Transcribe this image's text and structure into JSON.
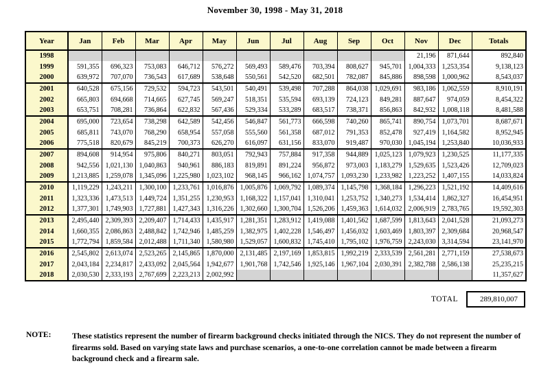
{
  "title": "November 30, 1998 - May 31, 2018",
  "table": {
    "headers": [
      "Year",
      "Jan",
      "Feb",
      "Mar",
      "Apr",
      "May",
      "Jun",
      "Jul",
      "Aug",
      "Sep",
      "Oct",
      "Nov",
      "Dec",
      "Totals"
    ],
    "rows": [
      {
        "year": "1998",
        "values": [
          "",
          "",
          "",
          "",
          "",
          "",
          "",
          "",
          "",
          "",
          "21,196",
          "871,644"
        ],
        "total": "892,840"
      },
      {
        "year": "1999",
        "values": [
          "591,355",
          "696,323",
          "753,083",
          "646,712",
          "576,272",
          "569,493",
          "589,476",
          "703,394",
          "808,627",
          "945,701",
          "1,004,333",
          "1,253,354"
        ],
        "total": "9,138,123"
      },
      {
        "year": "2000",
        "values": [
          "639,972",
          "707,070",
          "736,543",
          "617,689",
          "538,648",
          "550,561",
          "542,520",
          "682,501",
          "782,087",
          "845,886",
          "898,598",
          "1,000,962"
        ],
        "total": "8,543,037"
      },
      {
        "year": "2001",
        "values": [
          "640,528",
          "675,156",
          "729,532",
          "594,723",
          "543,501",
          "540,491",
          "539,498",
          "707,288",
          "864,038",
          "1,029,691",
          "983,186",
          "1,062,559"
        ],
        "total": "8,910,191"
      },
      {
        "year": "2002",
        "values": [
          "665,803",
          "694,668",
          "714,665",
          "627,745",
          "569,247",
          "518,351",
          "535,594",
          "693,139",
          "724,123",
          "849,281",
          "887,647",
          "974,059"
        ],
        "total": "8,454,322"
      },
      {
        "year": "2003",
        "values": [
          "653,751",
          "708,281",
          "736,864",
          "622,832",
          "567,436",
          "529,334",
          "533,289",
          "683,517",
          "738,371",
          "856,863",
          "842,932",
          "1,008,118"
        ],
        "total": "8,481,588"
      },
      {
        "year": "2004",
        "values": [
          "695,000",
          "723,654",
          "738,298",
          "642,589",
          "542,456",
          "546,847",
          "561,773",
          "666,598",
          "740,260",
          "865,741",
          "890,754",
          "1,073,701"
        ],
        "total": "8,687,671"
      },
      {
        "year": "2005",
        "values": [
          "685,811",
          "743,070",
          "768,290",
          "658,954",
          "557,058",
          "555,560",
          "561,358",
          "687,012",
          "791,353",
          "852,478",
          "927,419",
          "1,164,582"
        ],
        "total": "8,952,945"
      },
      {
        "year": "2006",
        "values": [
          "775,518",
          "820,679",
          "845,219",
          "700,373",
          "626,270",
          "616,097",
          "631,156",
          "833,070",
          "919,487",
          "970,030",
          "1,045,194",
          "1,253,840"
        ],
        "total": "10,036,933"
      },
      {
        "year": "2007",
        "values": [
          "894,608",
          "914,954",
          "975,806",
          "840,271",
          "803,051",
          "792,943",
          "757,884",
          "917,358",
          "944,889",
          "1,025,123",
          "1,079,923",
          "1,230,525"
        ],
        "total": "11,177,335"
      },
      {
        "year": "2008",
        "values": [
          "942,556",
          "1,021,130",
          "1,040,863",
          "940,961",
          "886,183",
          "819,891",
          "891,224",
          "956,872",
          "973,003",
          "1,183,279",
          "1,529,635",
          "1,523,426"
        ],
        "total": "12,709,023"
      },
      {
        "year": "2009",
        "values": [
          "1,213,885",
          "1,259,078",
          "1,345,096",
          "1,225,980",
          "1,023,102",
          "968,145",
          "966,162",
          "1,074,757",
          "1,093,230",
          "1,233,982",
          "1,223,252",
          "1,407,155"
        ],
        "total": "14,033,824"
      },
      {
        "year": "2010",
        "values": [
          "1,119,229",
          "1,243,211",
          "1,300,100",
          "1,233,761",
          "1,016,876",
          "1,005,876",
          "1,069,792",
          "1,089,374",
          "1,145,798",
          "1,368,184",
          "1,296,223",
          "1,521,192"
        ],
        "total": "14,409,616"
      },
      {
        "year": "2011",
        "values": [
          "1,323,336",
          "1,473,513",
          "1,449,724",
          "1,351,255",
          "1,230,953",
          "1,168,322",
          "1,157,041",
          "1,310,041",
          "1,253,752",
          "1,340,273",
          "1,534,414",
          "1,862,327"
        ],
        "total": "16,454,951"
      },
      {
        "year": "2012",
        "values": [
          "1,377,301",
          "1,749,903",
          "1,727,881",
          "1,427,343",
          "1,316,226",
          "1,302,660",
          "1,300,704",
          "1,526,206",
          "1,459,363",
          "1,614,032",
          "2,006,919",
          "2,783,765"
        ],
        "total": "19,592,303"
      },
      {
        "year": "2013",
        "values": [
          "2,495,440",
          "2,309,393",
          "2,209,407",
          "1,714,433",
          "1,435,917",
          "1,281,351",
          "1,283,912",
          "1,419,088",
          "1,401,562",
          "1,687,599",
          "1,813,643",
          "2,041,528"
        ],
        "total": "21,093,273"
      },
      {
        "year": "2014",
        "values": [
          "1,660,355",
          "2,086,863",
          "2,488,842",
          "1,742,946",
          "1,485,259",
          "1,382,975",
          "1,402,228",
          "1,546,497",
          "1,456,032",
          "1,603,469",
          "1,803,397",
          "2,309,684"
        ],
        "total": "20,968,547"
      },
      {
        "year": "2015",
        "values": [
          "1,772,794",
          "1,859,584",
          "2,012,488",
          "1,711,340",
          "1,580,980",
          "1,529,057",
          "1,600,832",
          "1,745,410",
          "1,795,102",
          "1,976,759",
          "2,243,030",
          "3,314,594"
        ],
        "total": "23,141,970"
      },
      {
        "year": "2016",
        "values": [
          "2,545,802",
          "2,613,074",
          "2,523,265",
          "2,145,865",
          "1,870,000",
          "2,131,485",
          "2,197,169",
          "1,853,815",
          "1,992,219",
          "2,333,539",
          "2,561,281",
          "2,771,159"
        ],
        "total": "27,538,673"
      },
      {
        "year": "2017",
        "values": [
          "2,043,184",
          "2,234,817",
          "2,433,092",
          "2,045,564",
          "1,942,677",
          "1,901,768",
          "1,742,546",
          "1,925,146",
          "1,967,104",
          "2,030,391",
          "2,382,788",
          "2,586,138"
        ],
        "total": "25,235,215"
      },
      {
        "year": "2018",
        "values": [
          "2,030,530",
          "2,333,193",
          "2,767,699",
          "2,223,213",
          "2,002,992",
          "",
          "",
          "",
          "",
          "",
          "",
          ""
        ],
        "total": "11,357,627"
      }
    ]
  },
  "grand_total": {
    "label": "TOTAL",
    "value": "289,810,007"
  },
  "note": {
    "label": "NOTE:",
    "text": "These statistics represent the number of firearm background checks initiated through the NICS.  They do not represent the number of firearms sold.  Based on varying state laws and purchase scenarios, a one-to-one correlation cannot be made between a firearm background check and a firearm sale."
  },
  "colors": {
    "header_bg": "#FBF8CC",
    "empty_cell_bg": "#D4D4D4",
    "border": "#000000",
    "page_bg": "#FFFFFF"
  }
}
